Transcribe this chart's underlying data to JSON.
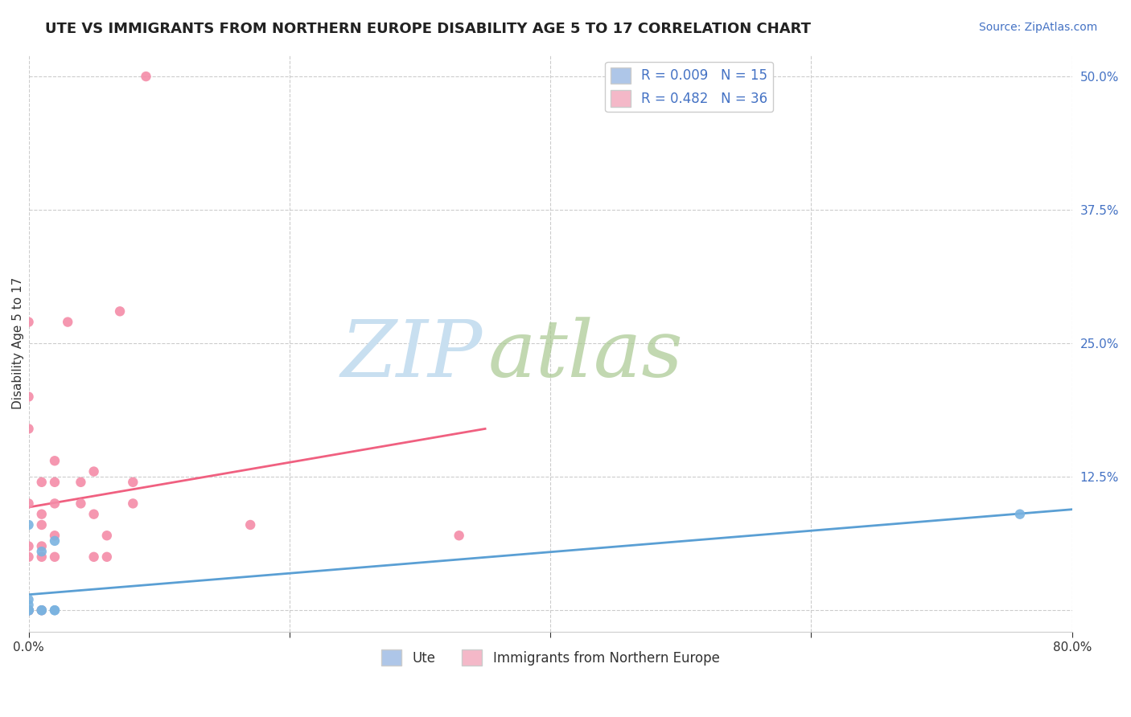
{
  "title": "UTE VS IMMIGRANTS FROM NORTHERN EUROPE DISABILITY AGE 5 TO 17 CORRELATION CHART",
  "source": "Source: ZipAtlas.com",
  "xlabel": "",
  "ylabel": "Disability Age 5 to 17",
  "xlim": [
    0.0,
    0.8
  ],
  "ylim": [
    -0.02,
    0.52
  ],
  "xticks": [
    0.0,
    0.2,
    0.4,
    0.6,
    0.8
  ],
  "xticklabels": [
    "0.0%",
    "",
    "",
    "",
    "80.0%"
  ],
  "yticks": [
    0.0,
    0.125,
    0.25,
    0.375,
    0.5
  ],
  "yticklabels": [
    "",
    "12.5%",
    "25.0%",
    "37.5%",
    "50.0%"
  ],
  "ute_color": "#7ab3e0",
  "immigrants_color": "#f48ca8",
  "ute_line_color": "#5a9fd4",
  "immigrants_line_color": "#f06080",
  "watermark_zip_color": "#c8dff0",
  "watermark_atlas_color": "#a8c890",
  "grid_color": "#cccccc",
  "grid_style": "--",
  "ute_x": [
    0.0,
    0.0,
    0.0,
    0.0,
    0.0,
    0.0,
    0.0,
    0.0,
    0.01,
    0.01,
    0.01,
    0.02,
    0.02,
    0.02,
    0.76
  ],
  "ute_y": [
    0.0,
    0.0,
    0.0,
    0.0,
    0.0,
    0.005,
    0.01,
    0.08,
    0.0,
    0.0,
    0.055,
    0.0,
    0.0,
    0.065,
    0.09
  ],
  "immigrants_x": [
    0.0,
    0.0,
    0.0,
    0.0,
    0.0,
    0.0,
    0.0,
    0.0,
    0.0,
    0.0,
    0.0,
    0.01,
    0.01,
    0.01,
    0.01,
    0.01,
    0.01,
    0.02,
    0.02,
    0.02,
    0.02,
    0.02,
    0.03,
    0.04,
    0.04,
    0.05,
    0.05,
    0.05,
    0.06,
    0.06,
    0.07,
    0.08,
    0.08,
    0.09,
    0.17,
    0.33
  ],
  "immigrants_y": [
    0.0,
    0.0,
    0.0,
    0.0,
    0.0,
    0.05,
    0.06,
    0.1,
    0.17,
    0.2,
    0.27,
    0.0,
    0.05,
    0.06,
    0.08,
    0.09,
    0.12,
    0.05,
    0.07,
    0.1,
    0.12,
    0.14,
    0.27,
    0.1,
    0.12,
    0.05,
    0.09,
    0.13,
    0.05,
    0.07,
    0.28,
    0.1,
    0.12,
    0.5,
    0.08,
    0.07
  ],
  "title_fontsize": 13,
  "label_fontsize": 11,
  "tick_fontsize": 11,
  "legend_fontsize": 12,
  "source_fontsize": 10,
  "bg_color": "#ffffff",
  "plot_bg_color": "#ffffff"
}
